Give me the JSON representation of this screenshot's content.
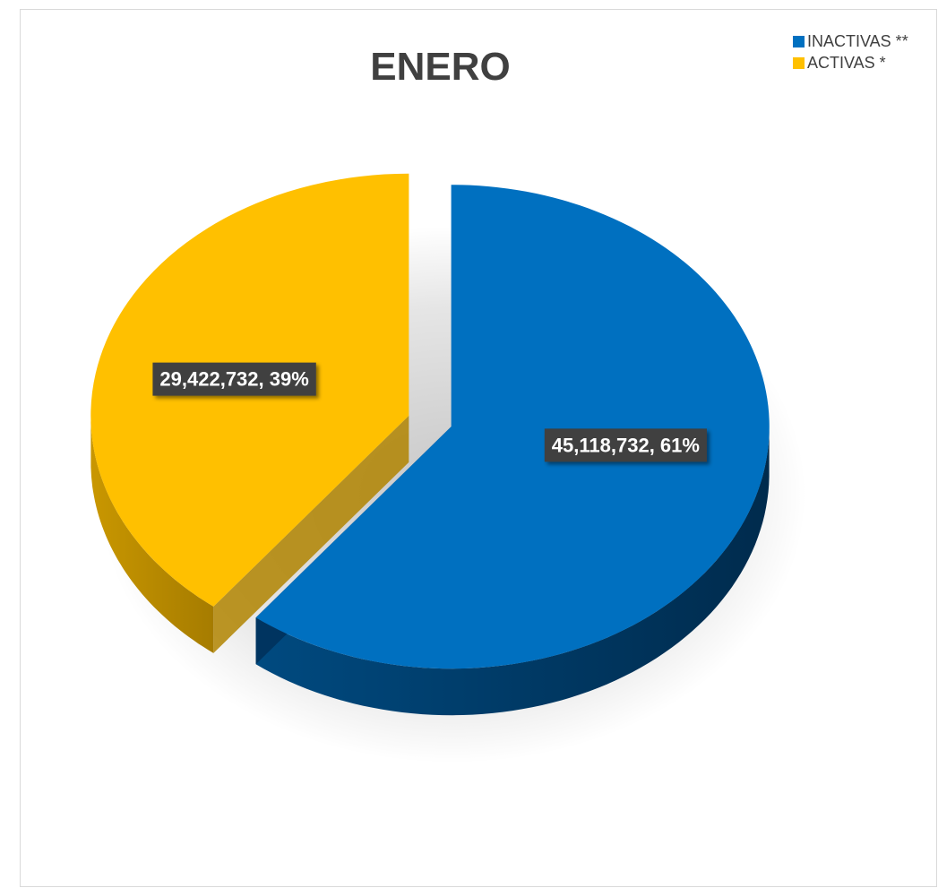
{
  "chart_data": {
    "type": "pie",
    "title": "ENERO",
    "legend_position": "top-right",
    "series": [
      {
        "name": "INACTIVAS **",
        "value": 45118732,
        "percent": 61,
        "label": "45,118,732, 61%",
        "color": "#0070C0",
        "dark_color": "#00305A"
      },
      {
        "name": "ACTIVAS *",
        "value": 29422732,
        "percent": 39,
        "label": "29,422,732, 39%",
        "color": "#FFC000",
        "dark_color": "#B08400"
      }
    ]
  }
}
